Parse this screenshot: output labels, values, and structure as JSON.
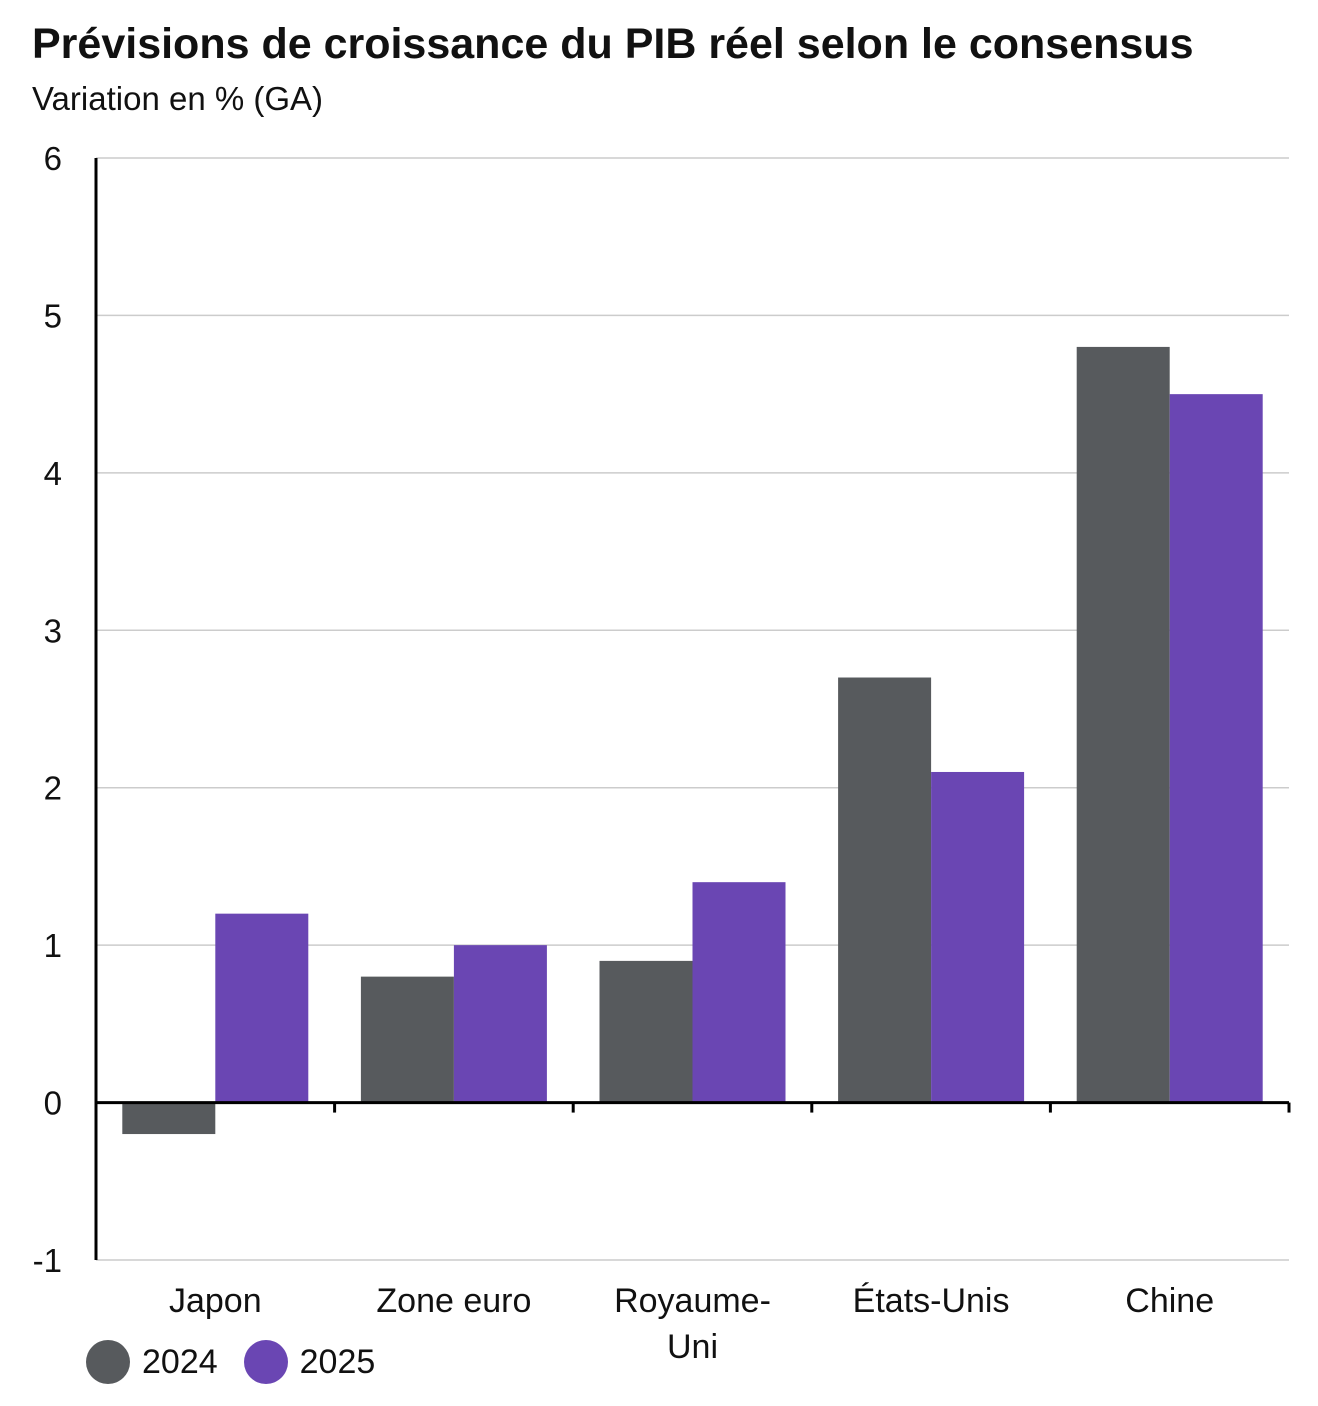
{
  "chart_data": {
    "type": "bar",
    "title": "Prévisions de croissance du PIB réel selon le consensus",
    "subtitle": "Variation en % (GA)",
    "categories": [
      [
        "Japon"
      ],
      [
        "Zone euro"
      ],
      [
        "Royaume-",
        "Uni"
      ],
      [
        "États-Unis"
      ],
      [
        "Chine"
      ]
    ],
    "series": [
      {
        "name": "2024",
        "color": "#575a5d",
        "values": [
          -0.2,
          0.8,
          0.9,
          2.7,
          4.8
        ]
      },
      {
        "name": "2025",
        "color": "#6a46b3",
        "values": [
          1.2,
          1.0,
          1.4,
          2.1,
          4.5
        ]
      }
    ],
    "ylim": [
      -1,
      6
    ],
    "yticks": [
      "-1",
      "0",
      "1",
      "2",
      "3",
      "4",
      "5",
      "6"
    ],
    "grid": true,
    "legend_position": "bottom-left"
  }
}
